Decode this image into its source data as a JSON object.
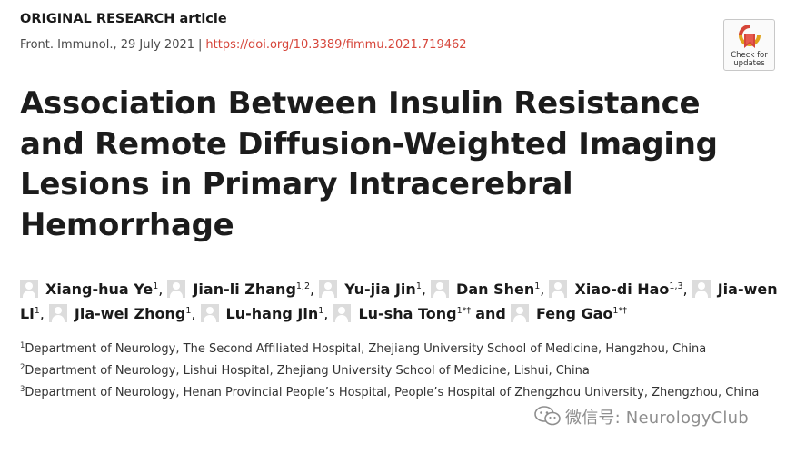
{
  "header": {
    "article_type": "ORIGINAL RESEARCH article",
    "journal_date": "Front. Immunol., 29 July 2021",
    "separator": "|",
    "doi": "https://doi.org/10.3389/fimmu.2021.719462"
  },
  "badge": {
    "line1": "Check for",
    "line2": "updates"
  },
  "title": "Association Between Insulin Resistance and Remote Diffusion-Weighted Imaging Lesions in Primary Intracerebral Hemorrhage",
  "authors": [
    {
      "name": "Xiang-hua Ye",
      "sup": "1"
    },
    {
      "name": "Jian-li Zhang",
      "sup": "1,2"
    },
    {
      "name": "Yu-jia Jin",
      "sup": "1"
    },
    {
      "name": "Dan Shen",
      "sup": "1"
    },
    {
      "name": "Xiao-di Hao",
      "sup": "1,3"
    },
    {
      "name": "Jia-wen Li",
      "sup": "1"
    },
    {
      "name": "Jia-wei Zhong",
      "sup": "1"
    },
    {
      "name": "Lu-hang Jin",
      "sup": "1"
    },
    {
      "name": "Lu-sha Tong",
      "sup": "1*†"
    },
    {
      "name": "Feng Gao",
      "sup": "1*†"
    }
  ],
  "author_sep": ",",
  "author_and": "and",
  "affiliations": [
    {
      "num": "1",
      "text": "Department of Neurology, The Second Affiliated Hospital, Zhejiang University School of Medicine, Hangzhou, China"
    },
    {
      "num": "2",
      "text": "Department of Neurology, Lishui Hospital, Zhejiang University School of Medicine, Lishui, China"
    },
    {
      "num": "3",
      "text": "Department of Neurology, Henan Provincial People’s Hospital, People’s Hospital of Zhengzhou University, Zhengzhou, China"
    }
  ],
  "watermark": "微信号: NeurologyClub",
  "icons": {
    "badge": "check-for-updates-icon",
    "avatar": "user-avatar-icon",
    "watermark": "wechat-icon"
  }
}
